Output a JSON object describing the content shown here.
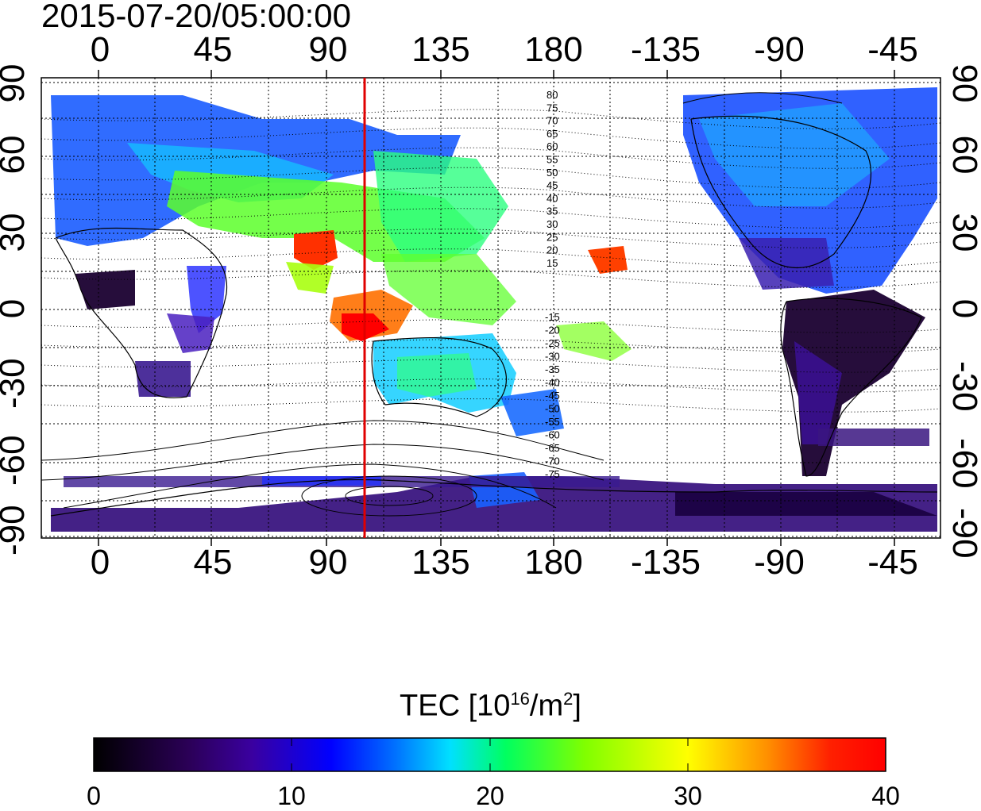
{
  "title": "2015-07-20/05:00:00",
  "map": {
    "top_axis_labels": [
      "0",
      "45",
      "90",
      "135",
      "180",
      "-135",
      "-90",
      "-45"
    ],
    "bottom_axis_labels": [
      "0",
      "45",
      "90",
      "135",
      "180",
      "-135",
      "-90",
      "-45"
    ],
    "left_axis_labels": [
      "90",
      "60",
      "30",
      "0",
      "-30",
      "-60",
      "-90"
    ],
    "right_axis_labels": [
      "90",
      "60",
      "30",
      "0",
      "-30",
      "-60",
      "-90"
    ],
    "north_dip_labels": [
      "80",
      "75",
      "70",
      "65",
      "60",
      "55",
      "50",
      "45",
      "40",
      "35",
      "30",
      "25",
      "20",
      "15"
    ],
    "south_dip_labels": [
      "-15",
      "-20",
      "-25",
      "-30",
      "-35",
      "-40",
      "-45",
      "-50",
      "-55",
      "-60",
      "-65",
      "-70",
      "-75"
    ],
    "meridian_line_color": "#e00000",
    "meridian_longitude": 105
  },
  "colorbar": {
    "title_prefix": "TEC  [10",
    "title_exp": "16",
    "title_mid": "/m",
    "title_exp2": "2",
    "title_suffix": "]",
    "ticks": [
      "0",
      "10",
      "20",
      "30",
      "40"
    ],
    "min": 0,
    "max": 40,
    "stops": [
      "#000000",
      "#2b0057",
      "#3a00a0",
      "#0000ff",
      "#0070ff",
      "#00e0ff",
      "#00ff60",
      "#80ff00",
      "#ffff00",
      "#ff9000",
      "#ff2000",
      "#ff0000"
    ]
  }
}
